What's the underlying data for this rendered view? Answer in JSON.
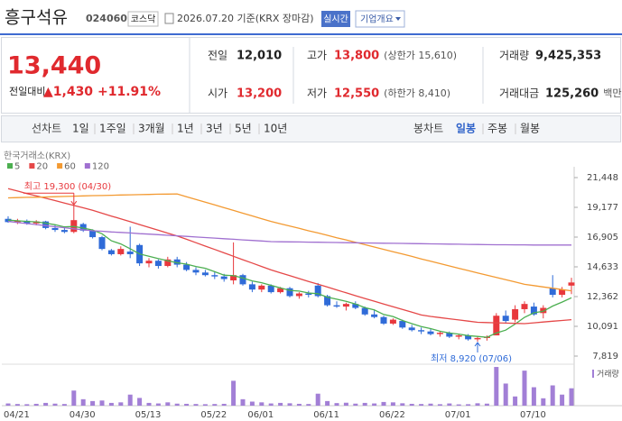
{
  "header": {
    "name": "흥구석유",
    "code": "024060",
    "market": "코스닥",
    "date": "2026.07.20 기준(KRX 장마감)",
    "realtime": "실시간",
    "company": "기업개요"
  },
  "quote": {
    "price": "13,440",
    "change_label": "전일대비",
    "change": "▲1,430",
    "change_pct": "+11.91%",
    "color": "#e0292e"
  },
  "stats": [
    {
      "label": "전일",
      "value": "12,010"
    },
    {
      "label": "고가",
      "value": "13,800",
      "note": "(상한가 15,610)",
      "color": "#e0292e"
    },
    {
      "label": "거래량",
      "value": "9,425,353"
    },
    {
      "label": "시가",
      "value": "13,200",
      "color": "#e0292e"
    },
    {
      "label": "저가",
      "value": "12,550",
      "note": "(하한가 8,410)",
      "color": "#e0292e"
    },
    {
      "label": "거래대금",
      "value": "125,260",
      "note": "백만"
    }
  ],
  "tabs": {
    "line": "선차트",
    "periods": [
      "1일",
      "1주일",
      "3개월",
      "1년",
      "3년",
      "5년",
      "10년"
    ],
    "candle": "봉차트",
    "intervals": [
      "일봉",
      "주봉",
      "월봉"
    ]
  },
  "chart_data": {
    "type": "candlestick",
    "source": "한국거래소(KRX)",
    "volume_label": "거래량",
    "high_label": "최고 19,300 (04/30)",
    "low_label": "최저 8,920 (07/06)",
    "up_color": "#e8383d",
    "down_color": "#2f6bd8",
    "volume_color": "#a27fd6",
    "categories": [
      "04/21",
      null,
      null,
      null,
      null,
      null,
      null,
      "04/30",
      null,
      null,
      null,
      null,
      null,
      null,
      "05/13",
      null,
      null,
      null,
      null,
      null,
      null,
      "05/22",
      null,
      null,
      null,
      null,
      "06/01",
      null,
      null,
      null,
      null,
      null,
      null,
      "06/11",
      null,
      null,
      null,
      null,
      null,
      null,
      "06/22",
      null,
      null,
      null,
      null,
      null,
      null,
      "07/01",
      null,
      null,
      null,
      null,
      null,
      null,
      null,
      "07/10",
      null,
      null,
      null,
      null,
      null
    ],
    "open": [
      18300,
      18050,
      18150,
      17950,
      18100,
      17600,
      17450,
      17300,
      17900,
      17400,
      16900,
      15900,
      15600,
      15800,
      16300,
      14900,
      15100,
      14700,
      15200,
      14800,
      14400,
      14200,
      14000,
      13900,
      13600,
      14000,
      13300,
      12900,
      13200,
      12700,
      13000,
      12400,
      12600,
      13200,
      12400,
      11700,
      11600,
      11800,
      11500,
      11000,
      10800,
      10300,
      10500,
      10000,
      9800,
      9700,
      9500,
      9600,
      9300,
      9400,
      9100,
      9200,
      9400,
      10900,
      10600,
      11400,
      11600,
      11100,
      13000,
      12500,
      13200
    ],
    "high": [
      18500,
      18300,
      18250,
      18200,
      18150,
      17800,
      17700,
      19300,
      18000,
      17500,
      17000,
      16000,
      16200,
      17700,
      16400,
      15300,
      15200,
      15400,
      15400,
      15000,
      14600,
      14400,
      14300,
      14100,
      16500,
      14100,
      13500,
      13300,
      13300,
      13100,
      13100,
      12700,
      12800,
      13400,
      12500,
      12000,
      11900,
      12000,
      11600,
      11300,
      10900,
      10700,
      10600,
      10200,
      10000,
      9900,
      9700,
      9700,
      9500,
      9500,
      9300,
      9400,
      11100,
      11300,
      11700,
      12000,
      11900,
      11700,
      14000,
      13100,
      13800
    ],
    "low": [
      18000,
      17900,
      17850,
      17800,
      17500,
      17300,
      17200,
      17200,
      17300,
      16800,
      15900,
      15500,
      15500,
      15300,
      14700,
      14600,
      14500,
      14600,
      14600,
      14300,
      14000,
      13900,
      13700,
      13500,
      13300,
      13200,
      12700,
      12700,
      12600,
      12600,
      12300,
      12200,
      12300,
      12300,
      11600,
      11500,
      11300,
      11400,
      10900,
      10700,
      10200,
      10200,
      9900,
      9700,
      9500,
      9400,
      9300,
      9200,
      9100,
      9000,
      8920,
      9000,
      9400,
      10300,
      10400,
      11100,
      10900,
      10700,
      12300,
      12300,
      12550
    ],
    "close": [
      18050,
      18150,
      17950,
      18100,
      17600,
      17450,
      17300,
      18200,
      17400,
      16900,
      16000,
      15600,
      16000,
      15600,
      14900,
      15100,
      14700,
      15200,
      14800,
      14400,
      14200,
      14000,
      13900,
      13700,
      14000,
      13300,
      12900,
      13200,
      12700,
      13000,
      12400,
      12600,
      12500,
      12400,
      11700,
      11600,
      11800,
      11500,
      11000,
      10800,
      10300,
      10600,
      10000,
      9800,
      9700,
      9500,
      9600,
      9300,
      9400,
      9100,
      9200,
      9300,
      10900,
      10500,
      11400,
      11800,
      11000,
      11500,
      12500,
      12900,
      13440
    ],
    "volume": [
      1200000,
      900000,
      800000,
      1000000,
      1500000,
      1100000,
      900000,
      8200000,
      3500000,
      2500000,
      2800000,
      1500000,
      1800000,
      6000000,
      4200000,
      1500000,
      1200000,
      1800000,
      1100000,
      1000000,
      900000,
      800000,
      900000,
      1000000,
      13500000,
      3500000,
      2200000,
      1800000,
      1200000,
      1500000,
      1300000,
      1000000,
      900000,
      6500000,
      2500000,
      1400000,
      1600000,
      1100000,
      1500000,
      1200000,
      2000000,
      1800000,
      1300000,
      1000000,
      900000,
      1100000,
      800000,
      1200000,
      700000,
      800000,
      1300000,
      1100000,
      21000000,
      12000000,
      5000000,
      19000000,
      10000000,
      4000000,
      11000000,
      6000000,
      9425353
    ],
    "volume_lim": [
      0,
      22000000
    ],
    "series": [
      {
        "name": "5",
        "color": "#4caf50",
        "values": [
          18200,
          18150,
          18100,
          18070,
          17970,
          17850,
          17680,
          17720,
          17590,
          17450,
          17160,
          16620,
          16380,
          16020,
          15620,
          15440,
          15260,
          15100,
          14940,
          14840,
          14660,
          14520,
          14260,
          14000,
          13960,
          13780,
          13560,
          13420,
          13220,
          13020,
          12840,
          12780,
          12640,
          12580,
          12320,
          12160,
          12000,
          11800,
          11520,
          11340,
          11000,
          10840,
          10540,
          10300,
          10080,
          9920,
          9720,
          9580,
          9500,
          9380,
          9320,
          9260,
          9580,
          9800,
          10260,
          10780,
          11120,
          11240,
          11640,
          11940,
          12270
        ]
      },
      {
        "name": "20",
        "color": "#e54848",
        "values": [
          20600,
          20420,
          20230,
          20050,
          19870,
          19690,
          19500,
          19320,
          19140,
          18950,
          18730,
          18510,
          18300,
          18080,
          17860,
          17640,
          17430,
          17210,
          16990,
          16740,
          16480,
          16220,
          15960,
          15700,
          15440,
          15180,
          14920,
          14660,
          14400,
          14180,
          13960,
          13740,
          13520,
          13310,
          13090,
          12870,
          12650,
          12430,
          12220,
          12010,
          11800,
          11590,
          11380,
          11170,
          10960,
          10850,
          10760,
          10670,
          10580,
          10490,
          10400,
          10380,
          10360,
          10340,
          10320,
          10300,
          10360,
          10420,
          10480,
          10540,
          10600
        ]
      },
      {
        "name": "60",
        "color": "#f39a32",
        "values": [
          19900,
          19920,
          19940,
          19950,
          19970,
          19990,
          20010,
          20030,
          20050,
          20070,
          20080,
          20100,
          20120,
          20130,
          20150,
          20160,
          20180,
          20190,
          20200,
          19990,
          19780,
          19570,
          19360,
          19150,
          18940,
          18730,
          18520,
          18310,
          18100,
          17920,
          17750,
          17570,
          17390,
          17220,
          17040,
          16860,
          16690,
          16510,
          16330,
          16150,
          15970,
          15790,
          15610,
          15430,
          15240,
          15060,
          14880,
          14700,
          14520,
          14350,
          14170,
          14000,
          13830,
          13650,
          13480,
          13300,
          13200,
          13100,
          13000,
          12900,
          12800
        ]
      },
      {
        "name": "120",
        "color": "#a070d0",
        "values": [
          18100,
          18020,
          17940,
          17860,
          17780,
          17700,
          17620,
          17540,
          17460,
          17390,
          17350,
          17300,
          17260,
          17220,
          17170,
          17130,
          17090,
          17040,
          17000,
          16960,
          16910,
          16870,
          16830,
          16780,
          16740,
          16690,
          16650,
          16610,
          16560,
          16550,
          16540,
          16530,
          16520,
          16510,
          16500,
          16490,
          16480,
          16470,
          16460,
          16450,
          16440,
          16430,
          16420,
          16410,
          16400,
          16390,
          16380,
          16370,
          16360,
          16350,
          16340,
          16330,
          16320,
          16320,
          16310,
          16310,
          16300,
          16300,
          16300,
          16300,
          16300
        ]
      }
    ],
    "ylim": [
      7819,
      21448
    ],
    "yticks": [
      {
        "value": 7819,
        "label": "7,819"
      },
      {
        "value": 10091,
        "label": "10,091"
      },
      {
        "value": 12362,
        "label": "12,362"
      },
      {
        "value": 14633,
        "label": "14,633"
      },
      {
        "value": 16905,
        "label": "16,905"
      },
      {
        "value": 19177,
        "label": "19,177"
      },
      {
        "value": 21448,
        "label": "21,448"
      }
    ],
    "grid": false
  }
}
